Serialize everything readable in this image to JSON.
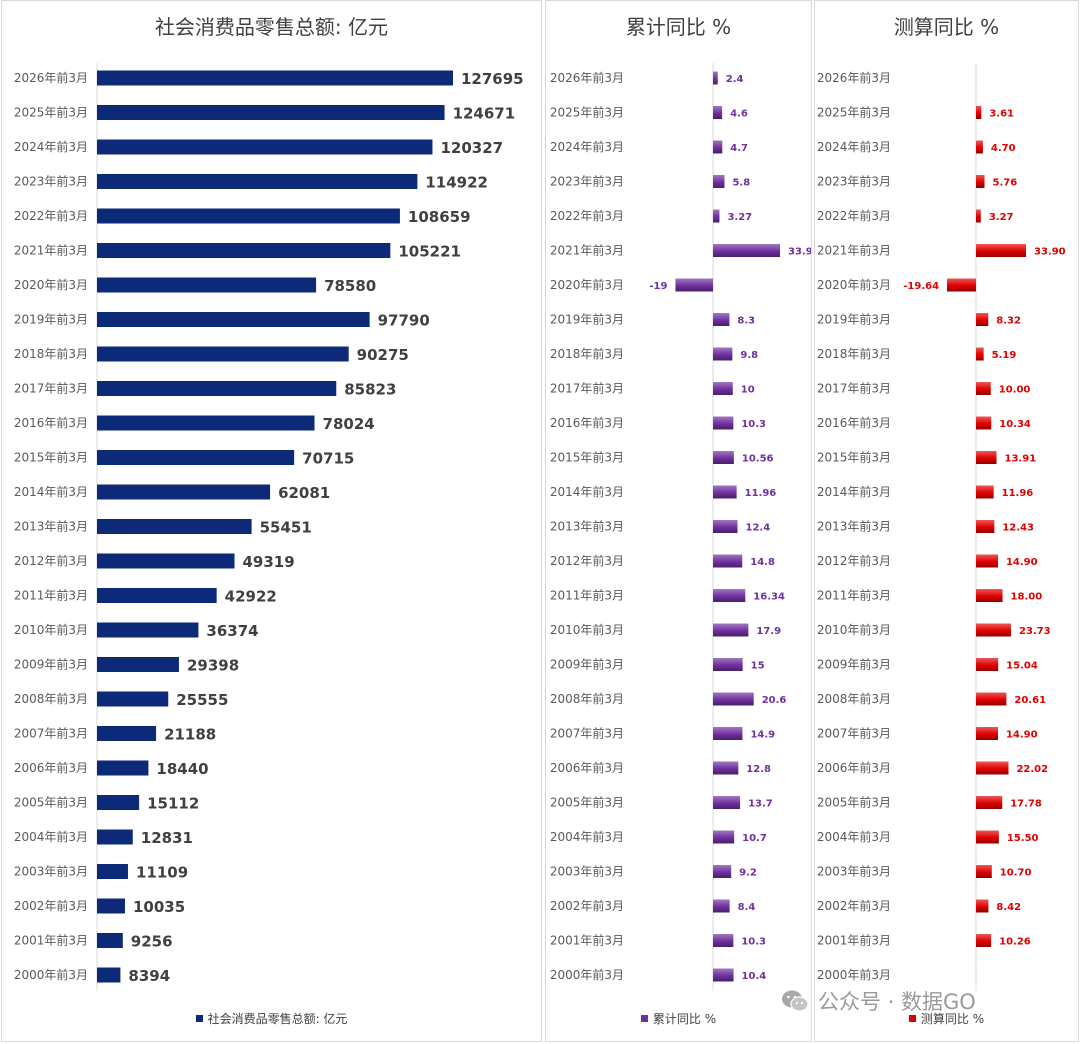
{
  "chart_data": [
    {
      "type": "bar",
      "orientation": "horizontal",
      "title": "社会消费品零售总额: 亿元",
      "legend": "社会消费品零售总额: 亿元",
      "legend_position": "bottom",
      "color": "#0d2a78",
      "categories": [
        "2026年前3月",
        "2025年前3月",
        "2024年前3月",
        "2023年前3月",
        "2022年前3月",
        "2021年前3月",
        "2020年前3月",
        "2019年前3月",
        "2018年前3月",
        "2017年前3月",
        "2016年前3月",
        "2015年前3月",
        "2014年前3月",
        "2013年前3月",
        "2012年前3月",
        "2011年前3月",
        "2010年前3月",
        "2009年前3月",
        "2008年前3月",
        "2007年前3月",
        "2006年前3月",
        "2005年前3月",
        "2004年前3月",
        "2003年前3月",
        "2002年前3月",
        "2001年前3月",
        "2000年前3月"
      ],
      "values": [
        127695,
        124671,
        120327,
        114922,
        108659,
        105221,
        78580,
        97790,
        90275,
        85823,
        78024,
        70715,
        62081,
        55451,
        49319,
        42922,
        36374,
        29398,
        25555,
        21188,
        18440,
        15112,
        12831,
        11109,
        10035,
        9256,
        8394
      ],
      "labels": [
        "127695",
        "124671",
        "120327",
        "114922",
        "108659",
        "105221",
        "78580",
        "97790",
        "90275",
        "85823",
        "78024",
        "70715",
        "62081",
        "55451",
        "49319",
        "42922",
        "36374",
        "29398",
        "25555",
        "21188",
        "18440",
        "15112",
        "12831",
        "11109",
        "10035",
        "9256",
        "8394"
      ],
      "xlim": [
        0,
        127695
      ],
      "grid": false
    },
    {
      "type": "bar",
      "orientation": "horizontal",
      "title": "累计同比 %",
      "legend": "累计同比 %",
      "legend_position": "bottom",
      "color": "#7030a0",
      "categories": [
        "2026年前3月",
        "2025年前3月",
        "2024年前3月",
        "2023年前3月",
        "2022年前3月",
        "2021年前3月",
        "2020年前3月",
        "2019年前3月",
        "2018年前3月",
        "2017年前3月",
        "2016年前3月",
        "2015年前3月",
        "2014年前3月",
        "2013年前3月",
        "2012年前3月",
        "2011年前3月",
        "2010年前3月",
        "2009年前3月",
        "2008年前3月",
        "2007年前3月",
        "2006年前3月",
        "2005年前3月",
        "2004年前3月",
        "2003年前3月",
        "2002年前3月",
        "2001年前3月",
        "2000年前3月"
      ],
      "values": [
        2.4,
        4.6,
        4.7,
        5.8,
        3.27,
        33.9,
        -19,
        8.3,
        9.8,
        10,
        10.3,
        10.56,
        11.96,
        12.4,
        14.8,
        16.34,
        17.9,
        15,
        20.6,
        14.9,
        12.8,
        13.7,
        10.7,
        9.2,
        8.4,
        10.3,
        10.4
      ],
      "labels": [
        "2.4",
        "4.6",
        "4.7",
        "5.8",
        "3.27",
        "33.9",
        "-19",
        "8.3",
        "9.8",
        "10",
        "10.3",
        "10.56",
        "11.96",
        "12.4",
        "14.8",
        "16.34",
        "17.9",
        "15",
        "20.6",
        "14.9",
        "12.8",
        "13.7",
        "10.7",
        "9.2",
        "8.4",
        "10.3",
        "10.4"
      ],
      "grid": false
    },
    {
      "type": "bar",
      "orientation": "horizontal",
      "title": "测算同比 %",
      "legend": "测算同比 %",
      "legend_position": "bottom",
      "color": "#e00000",
      "categories": [
        "2026年前3月",
        "2025年前3月",
        "2024年前3月",
        "2023年前3月",
        "2022年前3月",
        "2021年前3月",
        "2020年前3月",
        "2019年前3月",
        "2018年前3月",
        "2017年前3月",
        "2016年前3月",
        "2015年前3月",
        "2014年前3月",
        "2013年前3月",
        "2012年前3月",
        "2011年前3月",
        "2010年前3月",
        "2009年前3月",
        "2008年前3月",
        "2007年前3月",
        "2006年前3月",
        "2005年前3月",
        "2004年前3月",
        "2003年前3月",
        "2002年前3月",
        "2001年前3月",
        "2000年前3月"
      ],
      "values": [
        null,
        3.61,
        4.7,
        5.76,
        3.27,
        33.9,
        -19.64,
        8.32,
        5.19,
        10.0,
        10.34,
        13.91,
        11.96,
        12.43,
        14.9,
        18.0,
        23.73,
        15.04,
        20.61,
        14.9,
        22.02,
        17.78,
        15.5,
        10.7,
        8.42,
        10.26,
        null
      ],
      "labels": [
        "",
        "3.61",
        "4.70",
        "5.76",
        "3.27",
        "33.90",
        "-19.64",
        "8.32",
        "5.19",
        "10.00",
        "10.34",
        "13.91",
        "11.96",
        "12.43",
        "14.90",
        "18.00",
        "23.73",
        "15.04",
        "20.61",
        "14.90",
        "22.02",
        "17.78",
        "15.50",
        "10.70",
        "8.42",
        "10.26",
        ""
      ],
      "grid": false
    }
  ],
  "watermark": {
    "text": "公众号 · 数据GO",
    "icon": "wechat-icon"
  }
}
